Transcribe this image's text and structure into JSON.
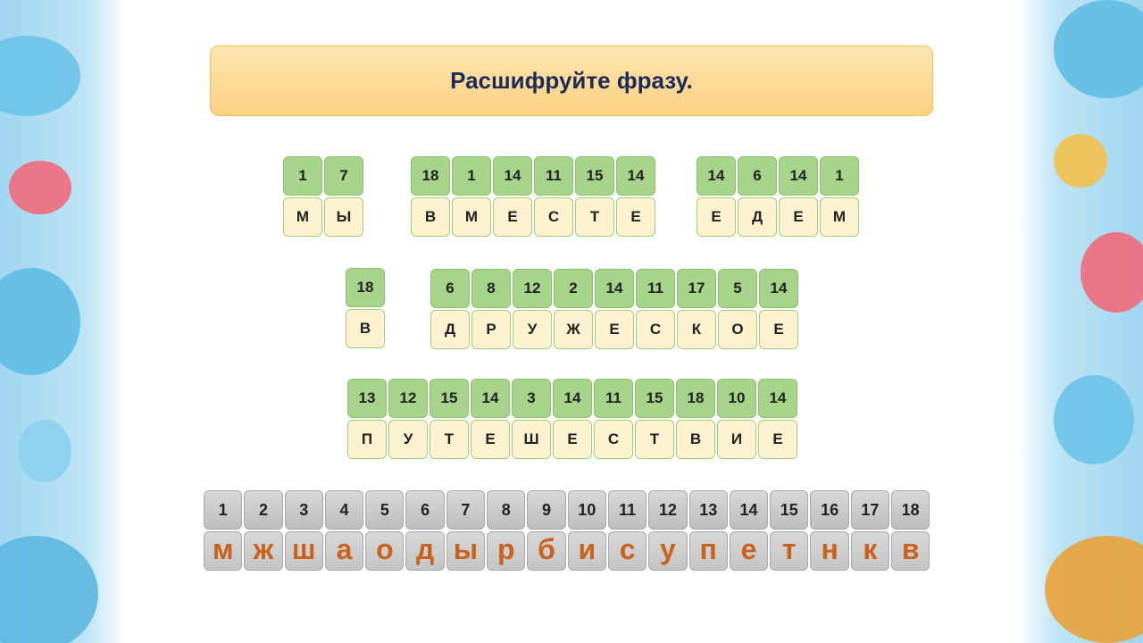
{
  "title": "Расшифруйте фразу.",
  "words": [
    {
      "nums": [
        "1",
        "7"
      ],
      "letters": [
        "М",
        "Ы"
      ]
    },
    {
      "nums": [
        "18",
        "1",
        "14",
        "11",
        "15",
        "14"
      ],
      "letters": [
        "В",
        "М",
        "Е",
        "С",
        "Т",
        "Е"
      ]
    },
    {
      "nums": [
        "14",
        "6",
        "14",
        "1"
      ],
      "letters": [
        "Е",
        "Д",
        "Е",
        "М"
      ]
    },
    {
      "nums": [
        "18"
      ],
      "letters": [
        "В"
      ]
    },
    {
      "nums": [
        "6",
        "8",
        "12",
        "2",
        "14",
        "11",
        "17",
        "5",
        "14"
      ],
      "letters": [
        "Д",
        "Р",
        "У",
        "Ж",
        "Е",
        "С",
        "К",
        "О",
        "Е"
      ]
    },
    {
      "nums": [
        "13",
        "12",
        "15",
        "14",
        "3",
        "14",
        "11",
        "15",
        "18",
        "10",
        "14"
      ],
      "letters": [
        "П",
        "У",
        "Т",
        "Е",
        "Ш",
        "Е",
        "С",
        "Т",
        "В",
        "И",
        "Е"
      ]
    }
  ],
  "key": {
    "nums": [
      "1",
      "2",
      "3",
      "4",
      "5",
      "6",
      "7",
      "8",
      "9",
      "10",
      "11",
      "12",
      "13",
      "14",
      "15",
      "16",
      "17",
      "18"
    ],
    "letters": [
      "м",
      "ж",
      "ш",
      "а",
      "о",
      "д",
      "ы",
      "р",
      "б",
      "и",
      "с",
      "у",
      "п",
      "е",
      "т",
      "н",
      "к",
      "в"
    ]
  },
  "colors": {
    "number_cell": "#a6d48b",
    "letter_cell": "#fdf2cf",
    "key_letter": "#c8621d",
    "title": "#1d2b5a"
  }
}
